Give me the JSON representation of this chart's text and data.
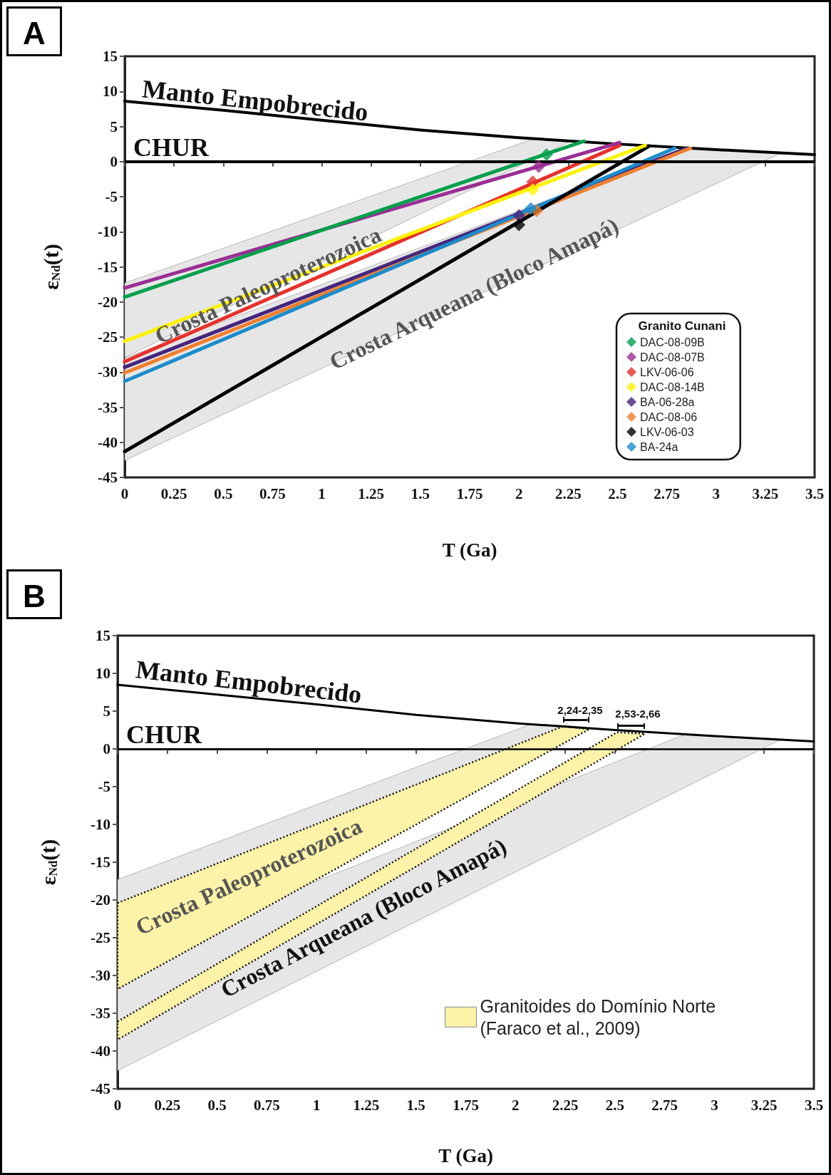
{
  "chart_data": [
    {
      "type": "line",
      "title": "A",
      "xlabel": "T (Ga)",
      "ylabel": "ε$_{Nd}$(t)",
      "legend_title": "Granito Cunani",
      "legend": "bottom right",
      "xlim": [
        0,
        3.5
      ],
      "xticks": [
        0,
        0.25,
        0.5,
        0.75,
        1,
        1.25,
        1.5,
        1.75,
        2,
        2.25,
        2.5,
        2.75,
        3,
        3.25,
        3.5
      ],
      "ylim": [
        -45,
        15
      ],
      "yticks": [
        -45,
        -40,
        -35,
        -30,
        -25,
        -20,
        -15,
        -10,
        -5,
        0,
        5,
        10,
        15
      ],
      "ref_lines": [
        {
          "axis": "y",
          "value": 0,
          "label": "CHUR",
          "color": "#000000"
        }
      ],
      "annotations": [
        "Manto Empobrecido",
        "Crosta Paleoproterozoica",
        "Crosta Arqueana (Bloco Amapá)"
      ],
      "series": [
        {
          "type": "area",
          "color": "#e6e6e6",
          "x": [
            0,
            2.08,
            2.27,
            0
          ],
          "values": [
            -17.3,
            3.3,
            3.0,
            -27.9
          ]
        },
        {
          "type": "area",
          "color": "#e6e6e6",
          "x": [
            0,
            2.85,
            3.33,
            0
          ],
          "values": [
            -28,
            1.9,
            1.2,
            -42.6
          ]
        },
        {
          "color": "#000000",
          "marker": "none",
          "x": [
            0,
            0.5,
            1,
            1.5,
            2,
            2.5,
            3,
            3.5
          ],
          "values": [
            8.6,
            7.3,
            5.9,
            4.5,
            3.4,
            2.5,
            1.7,
            1.0
          ]
        },
        {
          "color": "#44257e",
          "marker": "none",
          "x": [
            0,
            2.85
          ],
          "values": [
            -29.3,
            1.9
          ]
        },
        {
          "color": "#f07f2c",
          "marker": "none",
          "x": [
            0,
            2.87
          ],
          "values": [
            -30.1,
            1.9
          ]
        },
        {
          "color": "#1a8ccc",
          "marker": "none",
          "x": [
            0,
            2.79
          ],
          "values": [
            -31.3,
            1.9
          ]
        },
        {
          "color": "#000000",
          "marker": "none",
          "x": [
            0,
            2.66
          ],
          "values": [
            -41.3,
            2.2
          ]
        },
        {
          "color": "#e8302a",
          "marker": "none",
          "x": [
            0,
            2.51
          ],
          "values": [
            -28.5,
            2.3
          ]
        },
        {
          "color": "#fff200",
          "marker": "none",
          "x": [
            0,
            2.64
          ],
          "values": [
            -25.6,
            2.3
          ]
        },
        {
          "color": "#9b2d94",
          "marker": "none",
          "x": [
            0,
            2.51
          ],
          "values": [
            -18.0,
            2.7
          ]
        },
        {
          "color": "#00a04b",
          "marker": "none",
          "x": [
            0,
            2.33
          ],
          "values": [
            -19.3,
            2.9
          ]
        },
        {
          "type": "scatter",
          "name": "DAC-08-09B",
          "color": "#00a04b",
          "marker": "diamond",
          "x": [
            2.14
          ],
          "values": [
            1.0
          ]
        },
        {
          "type": "scatter",
          "name": "DAC-08-07B",
          "color": "#9b2d94",
          "marker": "diamond",
          "x": [
            2.1
          ],
          "values": [
            -0.7
          ]
        },
        {
          "type": "scatter",
          "name": "LKV-06-06",
          "color": "#e8302a",
          "marker": "diamond",
          "x": [
            2.07
          ],
          "values": [
            -2.9
          ]
        },
        {
          "type": "scatter",
          "name": "DAC-08-14B",
          "color": "#fff200",
          "marker": "diamond",
          "x": [
            2.07
          ],
          "values": [
            -4.0
          ]
        },
        {
          "type": "scatter",
          "name": "BA-06-28a",
          "color": "#44257e",
          "marker": "diamond",
          "x": [
            2.0
          ],
          "values": [
            -7.7
          ]
        },
        {
          "type": "scatter",
          "name": "DAC-08-06",
          "color": "#f07f2c",
          "marker": "diamond",
          "x": [
            2.09
          ],
          "values": [
            -7.0
          ]
        },
        {
          "type": "scatter",
          "name": "LKV-06-03",
          "color": "#000000",
          "marker": "diamond",
          "x": [
            2.0
          ],
          "values": [
            -9.0
          ]
        },
        {
          "type": "scatter",
          "name": "BA-24a",
          "color": "#1a8ccc",
          "marker": "diamond",
          "x": [
            2.06
          ],
          "values": [
            -6.7
          ]
        }
      ]
    },
    {
      "type": "line",
      "title": "B",
      "xlabel": "T (Ga)",
      "ylabel": "ε$_{Nd}$(t)",
      "legend": "bottom right",
      "xlim": [
        0,
        3.5
      ],
      "xticks": [
        0,
        0.25,
        0.5,
        0.75,
        1,
        1.25,
        1.5,
        1.75,
        2,
        2.25,
        2.5,
        2.75,
        3,
        3.25,
        3.5
      ],
      "ylim": [
        -45,
        15
      ],
      "yticks": [
        -45,
        -40,
        -35,
        -30,
        -25,
        -20,
        -15,
        -10,
        -5,
        0,
        5,
        10,
        15
      ],
      "ref_lines": [
        {
          "axis": "y",
          "value": 0,
          "label": "CHUR",
          "color": "#000000"
        }
      ],
      "annotations": [
        "Manto Empobrecido",
        "Crosta Paleoproterozoica",
        "Crosta Arqueana (Bloco Amapá)",
        "2,24-2,35",
        "2,53-2,66"
      ],
      "series": [
        {
          "type": "area",
          "color": "#e6e6e6",
          "x": [
            0,
            2.08,
            2.27,
            0
          ],
          "values": [
            -17.3,
            3.3,
            3.0,
            -27.9
          ]
        },
        {
          "type": "area",
          "color": "#e6e6e6",
          "x": [
            0,
            2.85,
            3.33,
            0
          ],
          "values": [
            -28,
            1.9,
            1.2,
            -42.6
          ]
        },
        {
          "type": "area",
          "name": "Granitoides do Domínio Norte (Faraco et al., 2009)",
          "color": "#fdf3a8",
          "line_style": "dotted",
          "x": [
            0,
            2.24,
            2.37,
            0
          ],
          "values": [
            -20.4,
            3.0,
            2.6,
            -31.8
          ]
        },
        {
          "type": "area",
          "color": "#fdf3a8",
          "line_style": "dotted",
          "x": [
            0,
            2.51,
            2.65,
            0
          ],
          "values": [
            -36.1,
            2.2,
            2.0,
            -38.5
          ]
        },
        {
          "color": "#000000",
          "marker": "none",
          "x": [
            0,
            0.5,
            1,
            1.5,
            2,
            2.5,
            3,
            3.5
          ],
          "values": [
            8.5,
            7.2,
            5.9,
            4.5,
            3.4,
            2.5,
            1.7,
            1.0
          ]
        }
      ]
    }
  ]
}
